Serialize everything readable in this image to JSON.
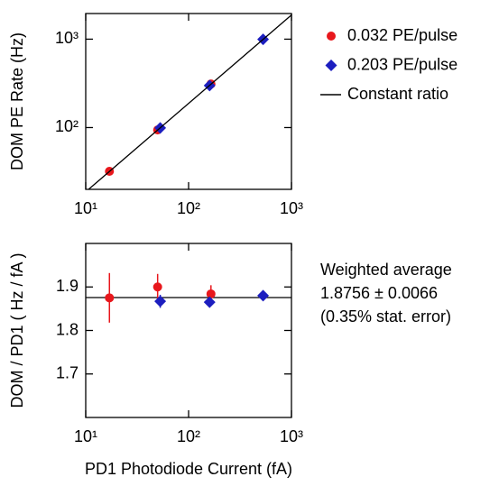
{
  "chart_data": [
    {
      "type": "scatter",
      "xscale": "log",
      "yscale": "log",
      "y_label": "DOM PE Rate (Hz)",
      "xlim": [
        10,
        1000
      ],
      "ylim": [
        20,
        1950
      ],
      "xticks": [
        {
          "value": 10,
          "label": "10¹"
        },
        {
          "value": 100,
          "label": "10²"
        },
        {
          "value": 1000,
          "label": "10³"
        }
      ],
      "yticks": [
        {
          "value": 100,
          "label": "10²"
        },
        {
          "value": 1000,
          "label": "10³"
        }
      ],
      "series": [
        {
          "name": "0.032 PE/pulse",
          "color": "#e8171c",
          "marker": "circle",
          "x": [
            17,
            50,
            165
          ],
          "values": [
            32,
            94,
            311
          ]
        },
        {
          "name": "0.203 PE/pulse",
          "color": "#1c1ebf",
          "marker": "diamond",
          "x": [
            53,
            160,
            530
          ],
          "values": [
            99,
            299,
            996
          ]
        },
        {
          "name": "Constant ratio",
          "color": "#000000",
          "marker": "line",
          "x": [
            10,
            1000
          ],
          "values": [
            18.756,
            1875.6
          ]
        }
      ]
    },
    {
      "type": "scatter",
      "xscale": "log",
      "yscale": "linear",
      "x_label": "PD1 Photodiode Current (fA)",
      "y_label": "DOM / PD1  ( Hz / fA )",
      "xlim": [
        10,
        1000
      ],
      "ylim": [
        1.6,
        2.0
      ],
      "xticks": [
        {
          "value": 10,
          "label": "10¹"
        },
        {
          "value": 100,
          "label": "10²"
        },
        {
          "value": 1000,
          "label": "10³"
        }
      ],
      "yticks": [
        1.7,
        1.8,
        1.9
      ],
      "reference_line": 1.8756,
      "annotation": [
        "Weighted average",
        "1.8756 ± 0.0066",
        "(0.35% stat. error)"
      ],
      "series": [
        {
          "color": "#e8171c",
          "marker": "circle",
          "x": [
            17,
            50,
            165
          ],
          "values": [
            1.875,
            1.9,
            1.884
          ],
          "errors": [
            0.057,
            0.03,
            0.02
          ]
        },
        {
          "color": "#1c1ebf",
          "marker": "diamond",
          "x": [
            53,
            160,
            530
          ],
          "values": [
            1.867,
            1.865,
            1.88
          ],
          "errors": [
            0.015,
            0.007,
            0.005
          ]
        }
      ]
    }
  ]
}
